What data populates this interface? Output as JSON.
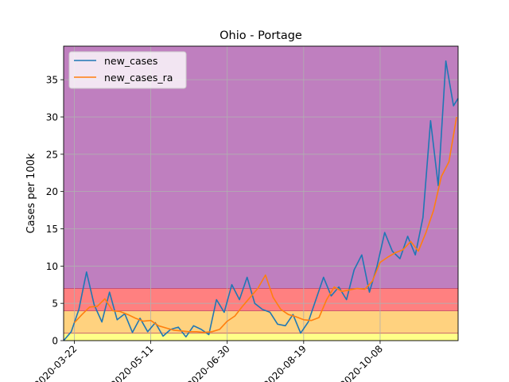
{
  "chart_data": {
    "type": "line",
    "title": "Ohio - Portage",
    "xlabel": "",
    "ylabel": "Cases per 100k",
    "x_start": "2020-03-15",
    "x_end": "2020-11-28",
    "ylim": [
      0,
      39.5
    ],
    "yticks": [
      0,
      5,
      10,
      15,
      20,
      25,
      30,
      35
    ],
    "xtick_labels": [
      "2020-03-22",
      "2020-05-11",
      "2020-06-30",
      "2020-08-19",
      "2020-10-08"
    ],
    "grid": true,
    "legend_position": "top-left",
    "bands": [
      {
        "from": 0,
        "to": 1,
        "color": "#ffff88"
      },
      {
        "from": 1,
        "to": 4,
        "color": "#ffd27f"
      },
      {
        "from": 4,
        "to": 7,
        "color": "#ff8080"
      },
      {
        "from": 7,
        "to": 39.5,
        "color": "#bf7fbf"
      }
    ],
    "series": [
      {
        "name": "new_cases",
        "color": "#1f77b4",
        "x": [
          "2020-03-15",
          "2020-03-20",
          "2020-03-25",
          "2020-03-30",
          "2020-04-04",
          "2020-04-09",
          "2020-04-14",
          "2020-04-19",
          "2020-04-24",
          "2020-04-29",
          "2020-05-04",
          "2020-05-09",
          "2020-05-14",
          "2020-05-19",
          "2020-05-24",
          "2020-05-29",
          "2020-06-03",
          "2020-06-08",
          "2020-06-13",
          "2020-06-18",
          "2020-06-23",
          "2020-06-28",
          "2020-07-03",
          "2020-07-08",
          "2020-07-13",
          "2020-07-18",
          "2020-07-23",
          "2020-07-28",
          "2020-08-02",
          "2020-08-07",
          "2020-08-12",
          "2020-08-17",
          "2020-08-22",
          "2020-08-27",
          "2020-09-01",
          "2020-09-06",
          "2020-09-11",
          "2020-09-16",
          "2020-09-21",
          "2020-09-26",
          "2020-10-01",
          "2020-10-06",
          "2020-10-11",
          "2020-10-16",
          "2020-10-21",
          "2020-10-26",
          "2020-10-31",
          "2020-11-05",
          "2020-11-10",
          "2020-11-15",
          "2020-11-20",
          "2020-11-25",
          "2020-11-28"
        ],
        "values": [
          0,
          1.2,
          4.2,
          9.2,
          4.8,
          2.5,
          6.5,
          2.8,
          3.6,
          1.1,
          3.0,
          1.2,
          2.4,
          0.6,
          1.5,
          1.8,
          0.5,
          2.0,
          1.5,
          0.8,
          5.5,
          3.8,
          7.5,
          5.5,
          8.5,
          5.0,
          4.2,
          3.8,
          2.2,
          2.0,
          3.5,
          1.0,
          2.5,
          5.5,
          8.5,
          6.0,
          7.2,
          5.5,
          9.5,
          11.5,
          6.5,
          10.0,
          14.5,
          12.0,
          11.0,
          14.0,
          11.5,
          16.5,
          29.5,
          20.8,
          37.5,
          31.5,
          32.5
        ]
      },
      {
        "name": "new_cases_ra",
        "color": "#ff7f0e",
        "x": [
          "2020-03-22",
          "2020-03-27",
          "2020-04-01",
          "2020-04-06",
          "2020-04-11",
          "2020-04-16",
          "2020-04-21",
          "2020-04-26",
          "2020-05-01",
          "2020-05-06",
          "2020-05-11",
          "2020-05-16",
          "2020-05-21",
          "2020-05-26",
          "2020-05-31",
          "2020-06-05",
          "2020-06-10",
          "2020-06-15",
          "2020-06-20",
          "2020-06-25",
          "2020-06-30",
          "2020-07-05",
          "2020-07-10",
          "2020-07-15",
          "2020-07-20",
          "2020-07-25",
          "2020-07-30",
          "2020-08-04",
          "2020-08-09",
          "2020-08-14",
          "2020-08-19",
          "2020-08-24",
          "2020-08-29",
          "2020-09-03",
          "2020-09-08",
          "2020-09-13",
          "2020-09-18",
          "2020-09-23",
          "2020-09-28",
          "2020-10-03",
          "2020-10-08",
          "2020-10-13",
          "2020-10-18",
          "2020-10-23",
          "2020-10-28",
          "2020-11-02",
          "2020-11-07",
          "2020-11-12",
          "2020-11-17",
          "2020-11-22",
          "2020-11-27"
        ],
        "values": [
          2.4,
          3.5,
          4.5,
          4.6,
          5.6,
          4.0,
          3.9,
          3.5,
          3.0,
          2.6,
          2.7,
          2.0,
          1.7,
          1.4,
          1.3,
          1.2,
          1.2,
          1.1,
          1.2,
          1.5,
          2.6,
          3.3,
          4.6,
          5.8,
          7.0,
          8.8,
          5.8,
          4.2,
          3.5,
          3.2,
          2.8,
          2.7,
          3.1,
          5.5,
          7.2,
          6.6,
          6.8,
          7.0,
          6.9,
          8.0,
          10.5,
          11.2,
          11.8,
          12.2,
          13.3,
          12.0,
          14.5,
          17.5,
          22.0,
          24.0,
          30.0
        ]
      }
    ]
  }
}
